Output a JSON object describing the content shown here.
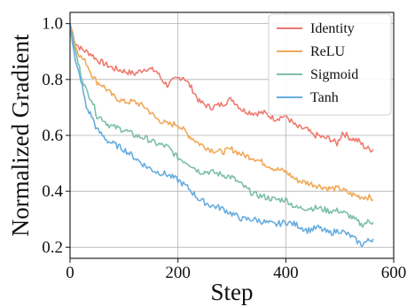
{
  "chart_data": {
    "type": "line",
    "title": "",
    "xlabel": "Step",
    "ylabel": "Normalized Gradient",
    "xlim": [
      0,
      600
    ],
    "ylim": [
      0.16,
      1.04
    ],
    "xticks": [
      0,
      200,
      400,
      600
    ],
    "yticks": [
      0.2,
      0.4,
      0.6,
      0.8,
      1.0
    ],
    "xtick_labels": [
      "0",
      "200",
      "400",
      "600"
    ],
    "ytick_labels": [
      "0.2",
      "0.4",
      "0.6",
      "0.8",
      "1.0"
    ],
    "grid": true,
    "legend_position": "top-right",
    "series": [
      {
        "name": "Identity",
        "color": "#ee7b6f",
        "points": [
          [
            0,
            1.0
          ],
          [
            10,
            0.93
          ],
          [
            20,
            0.91
          ],
          [
            30,
            0.9
          ],
          [
            40,
            0.89
          ],
          [
            50,
            0.87
          ],
          [
            60,
            0.86
          ],
          [
            70,
            0.85
          ],
          [
            80,
            0.84
          ],
          [
            100,
            0.83
          ],
          [
            120,
            0.82
          ],
          [
            140,
            0.84
          ],
          [
            160,
            0.83
          ],
          [
            170,
            0.8
          ],
          [
            180,
            0.78
          ],
          [
            195,
            0.8
          ],
          [
            210,
            0.81
          ],
          [
            225,
            0.77
          ],
          [
            240,
            0.72
          ],
          [
            260,
            0.7
          ],
          [
            280,
            0.71
          ],
          [
            300,
            0.73
          ],
          [
            320,
            0.69
          ],
          [
            340,
            0.68
          ],
          [
            360,
            0.68
          ],
          [
            380,
            0.66
          ],
          [
            400,
            0.67
          ],
          [
            420,
            0.63
          ],
          [
            440,
            0.62
          ],
          [
            450,
            0.6
          ],
          [
            460,
            0.6
          ],
          [
            470,
            0.59
          ],
          [
            480,
            0.59
          ],
          [
            495,
            0.57
          ],
          [
            505,
            0.61
          ],
          [
            520,
            0.59
          ],
          [
            535,
            0.58
          ],
          [
            545,
            0.56
          ],
          [
            555,
            0.55
          ],
          [
            562,
            0.55
          ]
        ]
      },
      {
        "name": "ReLU",
        "color": "#f0a959",
        "points": [
          [
            0,
            1.0
          ],
          [
            10,
            0.92
          ],
          [
            20,
            0.88
          ],
          [
            30,
            0.86
          ],
          [
            40,
            0.82
          ],
          [
            50,
            0.79
          ],
          [
            60,
            0.78
          ],
          [
            70,
            0.76
          ],
          [
            80,
            0.74
          ],
          [
            100,
            0.72
          ],
          [
            120,
            0.72
          ],
          [
            140,
            0.7
          ],
          [
            160,
            0.66
          ],
          [
            180,
            0.64
          ],
          [
            200,
            0.64
          ],
          [
            220,
            0.6
          ],
          [
            240,
            0.57
          ],
          [
            260,
            0.55
          ],
          [
            280,
            0.54
          ],
          [
            300,
            0.55
          ],
          [
            320,
            0.53
          ],
          [
            340,
            0.52
          ],
          [
            360,
            0.5
          ],
          [
            380,
            0.48
          ],
          [
            400,
            0.47
          ],
          [
            420,
            0.44
          ],
          [
            440,
            0.43
          ],
          [
            460,
            0.42
          ],
          [
            480,
            0.41
          ],
          [
            500,
            0.41
          ],
          [
            520,
            0.39
          ],
          [
            540,
            0.38
          ],
          [
            552,
            0.38
          ],
          [
            562,
            0.37
          ]
        ]
      },
      {
        "name": "Sigmoid",
        "color": "#7dbfa8",
        "points": [
          [
            0,
            1.0
          ],
          [
            10,
            0.9
          ],
          [
            20,
            0.82
          ],
          [
            30,
            0.76
          ],
          [
            40,
            0.73
          ],
          [
            50,
            0.67
          ],
          [
            60,
            0.66
          ],
          [
            70,
            0.64
          ],
          [
            80,
            0.63
          ],
          [
            100,
            0.62
          ],
          [
            120,
            0.6
          ],
          [
            140,
            0.59
          ],
          [
            160,
            0.57
          ],
          [
            180,
            0.56
          ],
          [
            200,
            0.52
          ],
          [
            220,
            0.5
          ],
          [
            240,
            0.47
          ],
          [
            260,
            0.47
          ],
          [
            280,
            0.46
          ],
          [
            300,
            0.45
          ],
          [
            320,
            0.42
          ],
          [
            340,
            0.39
          ],
          [
            360,
            0.38
          ],
          [
            380,
            0.37
          ],
          [
            400,
            0.37
          ],
          [
            420,
            0.34
          ],
          [
            440,
            0.34
          ],
          [
            460,
            0.34
          ],
          [
            480,
            0.33
          ],
          [
            500,
            0.33
          ],
          [
            520,
            0.31
          ],
          [
            540,
            0.28
          ],
          [
            552,
            0.29
          ],
          [
            562,
            0.29
          ]
        ]
      },
      {
        "name": "Tanh",
        "color": "#66addf",
        "points": [
          [
            0,
            1.0
          ],
          [
            10,
            0.86
          ],
          [
            20,
            0.8
          ],
          [
            30,
            0.7
          ],
          [
            40,
            0.67
          ],
          [
            50,
            0.62
          ],
          [
            60,
            0.6
          ],
          [
            70,
            0.58
          ],
          [
            80,
            0.57
          ],
          [
            100,
            0.55
          ],
          [
            120,
            0.52
          ],
          [
            140,
            0.49
          ],
          [
            160,
            0.47
          ],
          [
            180,
            0.46
          ],
          [
            200,
            0.44
          ],
          [
            220,
            0.41
          ],
          [
            240,
            0.37
          ],
          [
            260,
            0.35
          ],
          [
            280,
            0.34
          ],
          [
            300,
            0.32
          ],
          [
            320,
            0.3
          ],
          [
            340,
            0.3
          ],
          [
            360,
            0.29
          ],
          [
            380,
            0.28
          ],
          [
            400,
            0.29
          ],
          [
            420,
            0.28
          ],
          [
            440,
            0.26
          ],
          [
            460,
            0.27
          ],
          [
            480,
            0.25
          ],
          [
            500,
            0.26
          ],
          [
            520,
            0.24
          ],
          [
            540,
            0.21
          ],
          [
            550,
            0.22
          ],
          [
            562,
            0.23
          ]
        ]
      }
    ]
  }
}
